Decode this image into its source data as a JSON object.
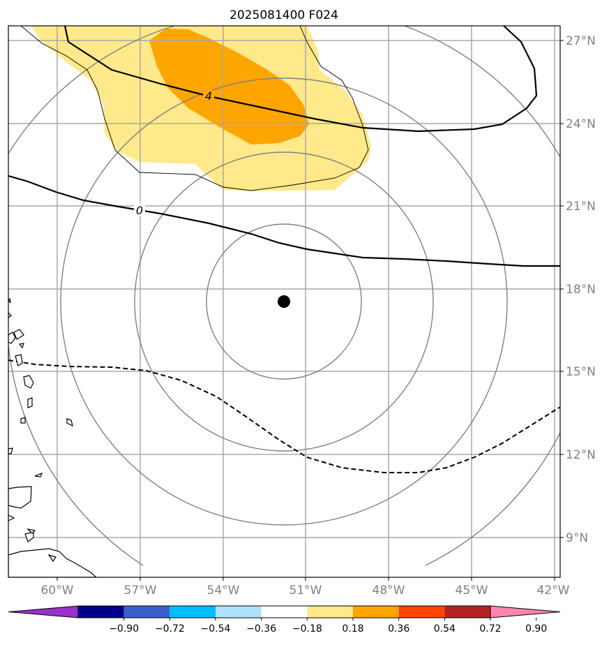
{
  "title": "2025081400 F024",
  "lon_labels": [
    "60°W",
    "57°W",
    "54°W",
    "51°W",
    "48°W",
    "45°W",
    "42°W"
  ],
  "lat_labels": [
    "27°N",
    "24°N",
    "21°N",
    "18°N",
    "15°N",
    "12°N",
    "9°N"
  ],
  "contour_labels": {
    "c4": "4",
    "c0": "0"
  },
  "colorbar": {
    "tick_labels": [
      "−0.90",
      "−0.72",
      "−0.54",
      "−0.36",
      "−0.18",
      "0.18",
      "0.36",
      "0.54",
      "0.72",
      "0.90"
    ],
    "colors": [
      "#9932cc",
      "#00008b",
      "#3a5fcd",
      "#00bfff",
      "#b0e2ff",
      "#ffffff",
      "#ffe98a",
      "#ffa500",
      "#ff4500",
      "#b22222",
      "#ff86b0"
    ]
  },
  "storm_center": {
    "lon": -51.7,
    "lat": 17.5
  },
  "map_extent": {
    "lon_min": -61.7,
    "lon_max": -41.7,
    "lat_min": 7.7,
    "lat_max": 27.5
  }
}
